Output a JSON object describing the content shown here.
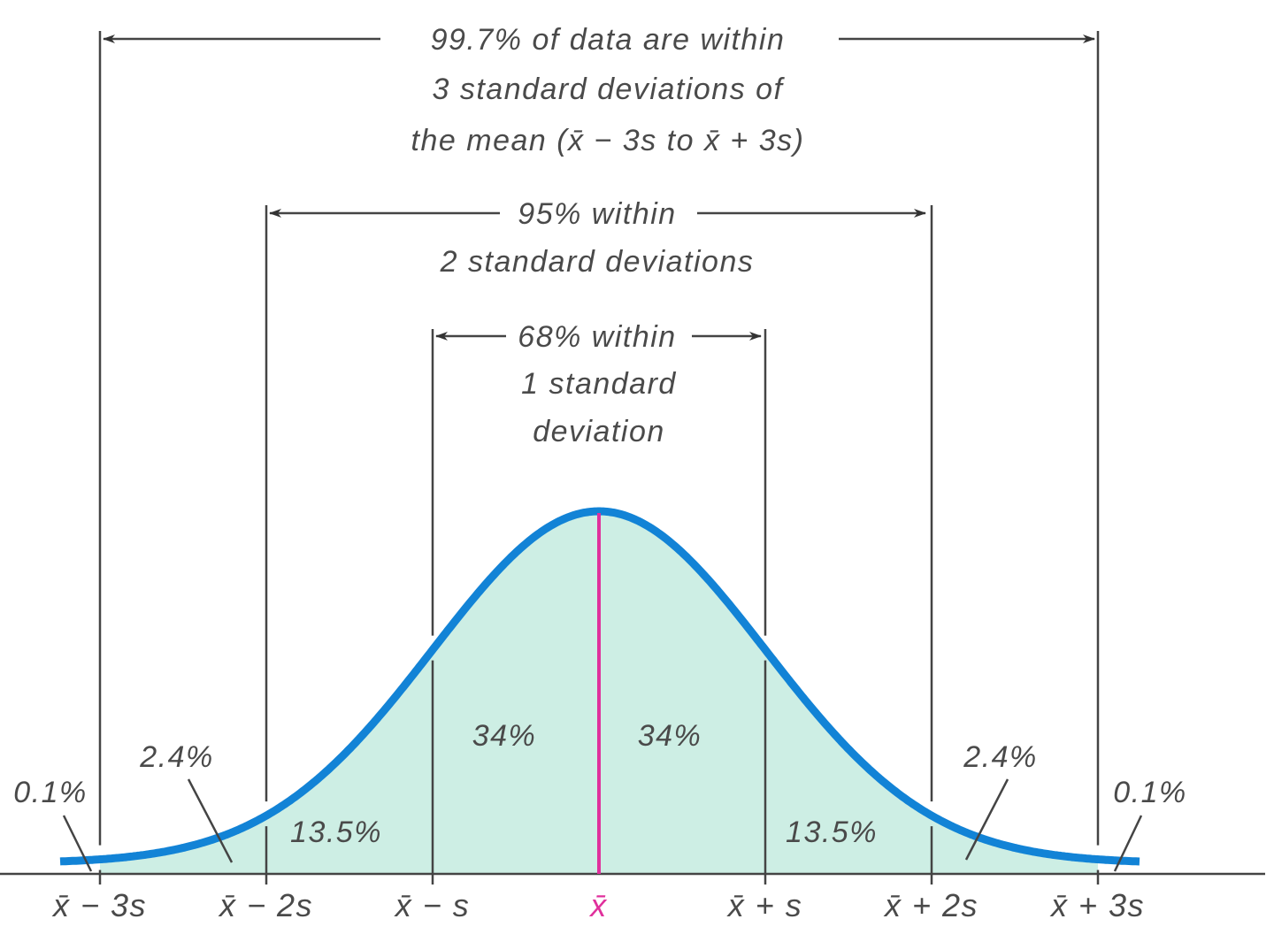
{
  "colors": {
    "curve": "#1283d6",
    "fill": "#cdeee4",
    "mean_line": "#e0309c",
    "text": "#4a4a4a"
  },
  "annotations": {
    "three_sd": [
      "99.7% of data are within",
      "3 standard deviations of",
      "the mean (x̄ − 3s to x̄ + 3s)"
    ],
    "two_sd": [
      "95% within",
      "2 standard deviations"
    ],
    "one_sd": [
      "68% within",
      "1 standard",
      "deviation"
    ]
  },
  "regions": {
    "left_tail": "0.1%",
    "left_2_3": "2.4%",
    "left_1_2": "13.5%",
    "left_0_1": "34%",
    "right_0_1": "34%",
    "right_1_2": "13.5%",
    "right_2_3": "2.4%",
    "right_tail": "0.1%"
  },
  "axis_labels": [
    "x̄ − 3s",
    "x̄ − 2s",
    "x̄ − s",
    "x̄",
    "x̄ + s",
    "x̄ + 2s",
    "x̄ + 3s"
  ]
}
